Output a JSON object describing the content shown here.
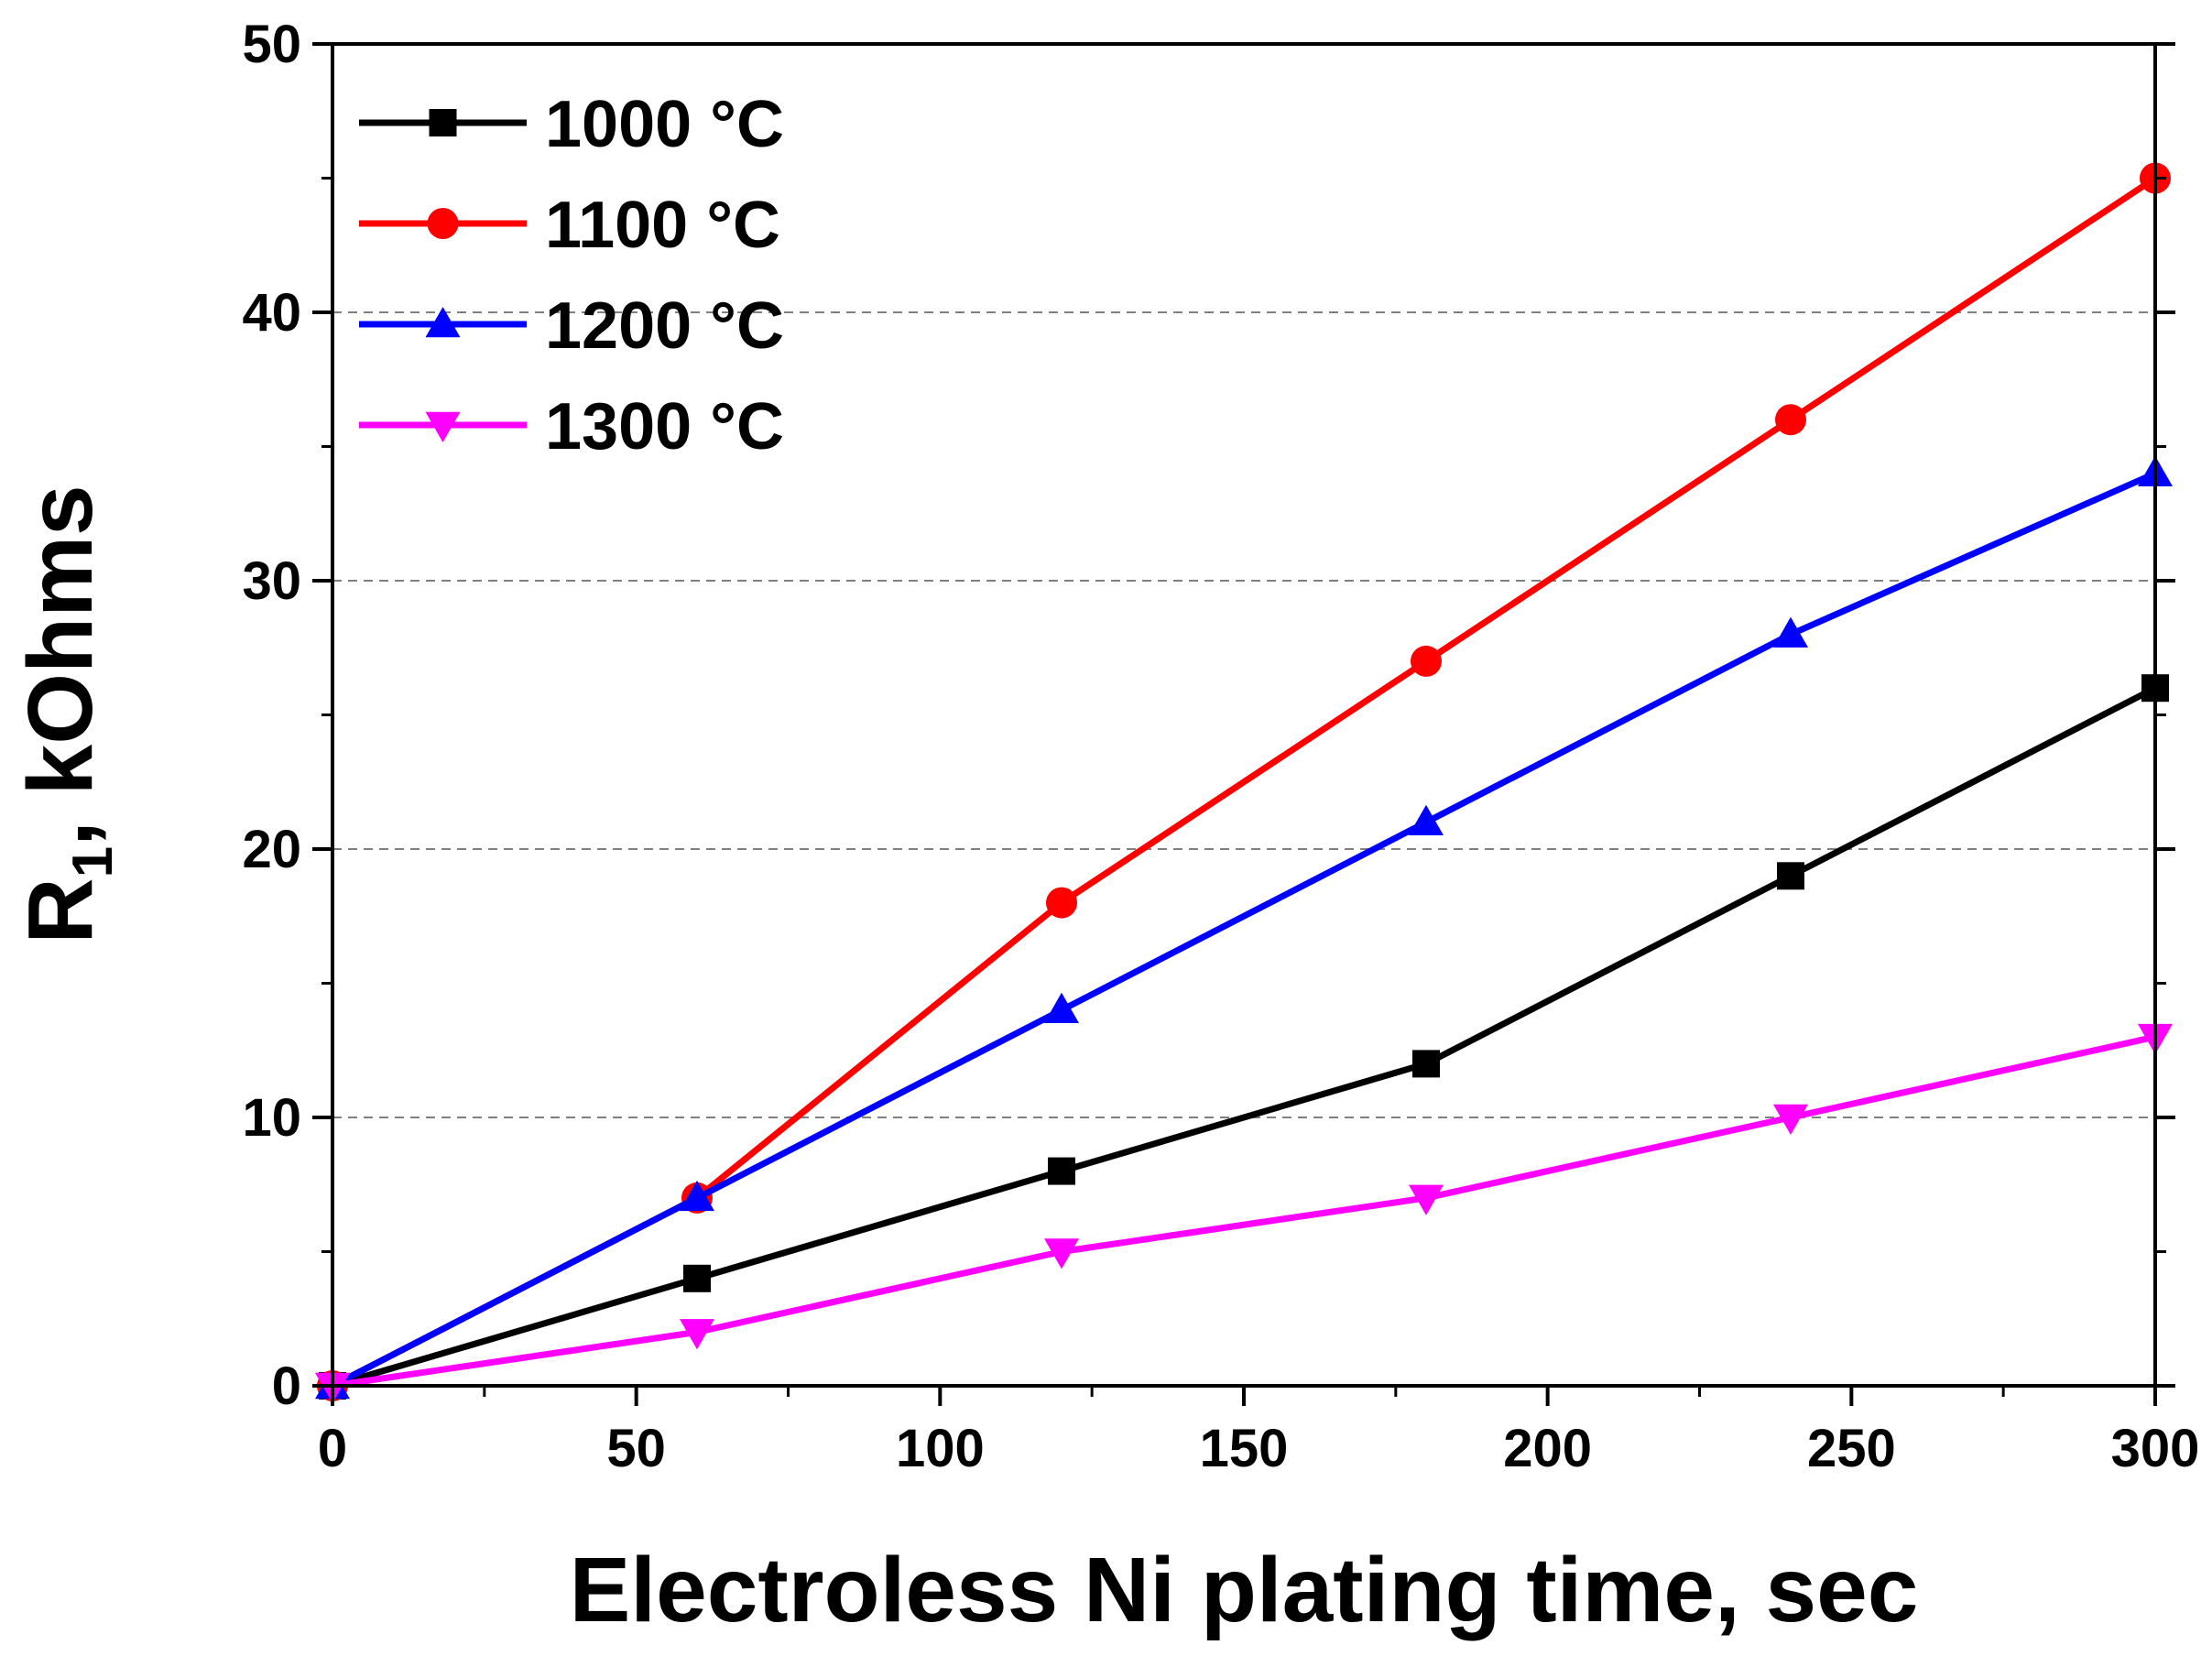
{
  "chart_data": {
    "type": "line",
    "title": "",
    "xlabel": "Electroless Ni plating time, sec",
    "ylabel_main": "R",
    "ylabel_sub": "1",
    "ylabel_rest": ", kOhms",
    "xlim": [
      0,
      300
    ],
    "ylim": [
      0,
      50
    ],
    "x_major_ticks": [
      0,
      50,
      100,
      150,
      200,
      250,
      300
    ],
    "x_tick_labels": [
      "0",
      "50",
      "100",
      "150",
      "200",
      "250",
      "300"
    ],
    "x_minor_ticks": [
      25,
      75,
      125,
      175,
      225,
      275
    ],
    "y_major_ticks": [
      0,
      10,
      20,
      30,
      40,
      50
    ],
    "y_tick_labels": [
      "0",
      "10",
      "20",
      "30",
      "40",
      "50"
    ],
    "y_minor_ticks": [
      5,
      15,
      25,
      35,
      45
    ],
    "y_gridlines": [
      10,
      20,
      30,
      40
    ],
    "grid": "horizontal dashed",
    "legend_position": "top-left",
    "x": [
      0,
      60,
      120,
      180,
      240,
      300
    ],
    "series": [
      {
        "name": "1000 °C",
        "color": "#000000",
        "marker": "square",
        "values": [
          0,
          4,
          8,
          12,
          19,
          26
        ]
      },
      {
        "name": "1100 °C",
        "color": "#ff0000",
        "marker": "circle",
        "values": [
          0,
          7,
          18,
          27,
          36,
          45
        ]
      },
      {
        "name": "1200 °C",
        "color": "#0000ff",
        "marker": "triangle-up",
        "values": [
          0,
          7,
          14,
          21,
          28,
          34
        ]
      },
      {
        "name": "1300 °C",
        "color": "#ff00ff",
        "marker": "triangle-down",
        "values": [
          0,
          2,
          5,
          7,
          10,
          13
        ]
      }
    ]
  }
}
